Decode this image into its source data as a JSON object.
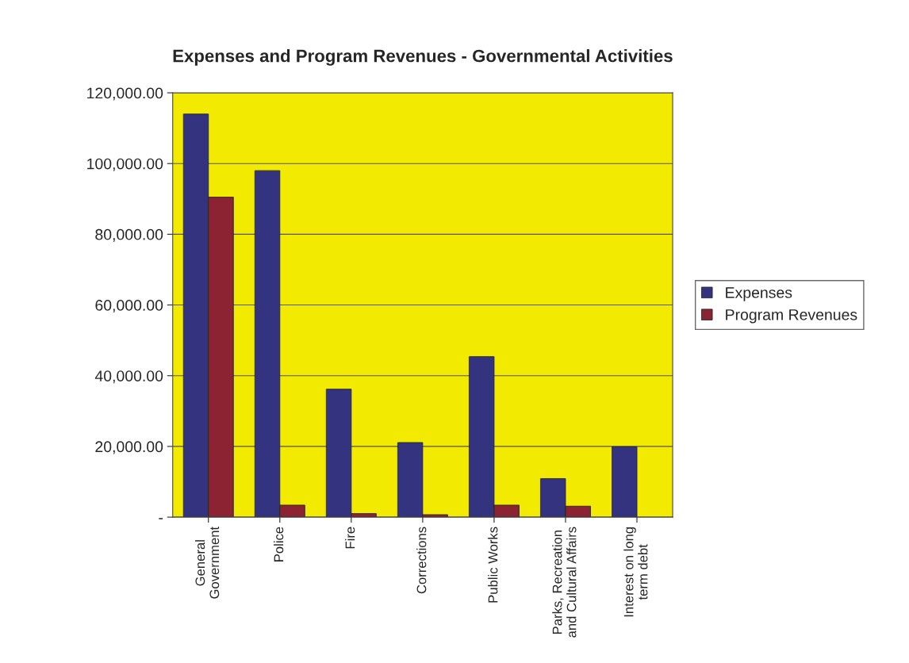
{
  "chart_data": {
    "type": "bar",
    "title": "Expenses and Program Revenues - Governmental Activities",
    "categories": [
      "General\nGovernment",
      "Police",
      "Fire",
      "Corrections",
      "Public Works",
      "Parks, Recreation\nand Cultural Affairs",
      "Interest on long\nterm debt"
    ],
    "series": [
      {
        "name": "Expenses",
        "color": "#333380",
        "values": [
          114000,
          98000,
          36200,
          21100,
          45400,
          10900,
          19900
        ]
      },
      {
        "name": "Program Revenues",
        "color": "#8b2332",
        "values": [
          90500,
          3400,
          1000,
          700,
          3400,
          3100,
          null
        ]
      }
    ],
    "ylim": [
      0,
      120000
    ],
    "yticks": [
      {
        "value": 0,
        "label": "-"
      },
      {
        "value": 20000,
        "label": "20,000.00"
      },
      {
        "value": 40000,
        "label": "40,000.00"
      },
      {
        "value": 60000,
        "label": "60,000.00"
      },
      {
        "value": 80000,
        "label": "80,000.00"
      },
      {
        "value": 100000,
        "label": "100,000.00"
      },
      {
        "value": 120000,
        "label": "120,000.00"
      }
    ],
    "grid": "y",
    "legend": "right"
  }
}
